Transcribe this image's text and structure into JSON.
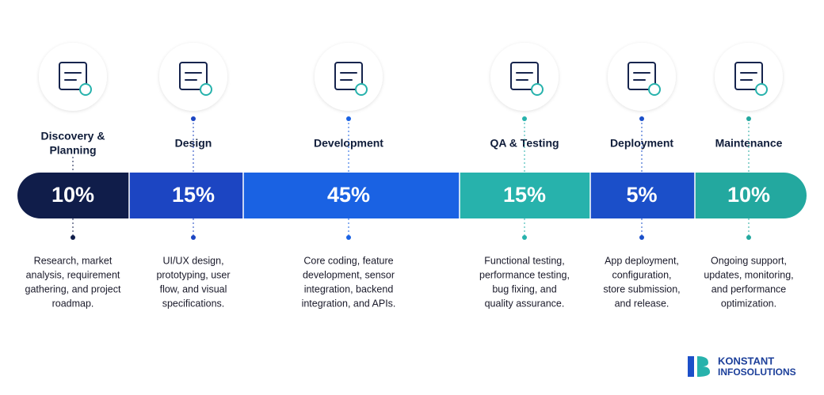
{
  "phases": [
    {
      "name": [
        "Discovery &",
        "Planning"
      ],
      "percent": "10%",
      "description": [
        "Research, market",
        "analysis, requirement",
        "gathering, and project",
        "roadmap."
      ],
      "color": "#101d4a",
      "dot": "#101d4a"
    },
    {
      "name": [
        "Design"
      ],
      "percent": "15%",
      "description": [
        "UI/UX design,",
        "prototyping, user",
        "flow, and visual",
        "specifications."
      ],
      "color": "#1c45c2",
      "dot": "#1c45c2"
    },
    {
      "name": [
        "Development"
      ],
      "percent": "45%",
      "description": [
        "Core coding, feature",
        "development, sensor",
        "integration, backend",
        "integration, and APIs."
      ],
      "color": "#1a62e3",
      "dot": "#1a62e3"
    },
    {
      "name": [
        "QA & Testing"
      ],
      "percent": "15%",
      "description": [
        "Functional testing,",
        "performance testing,",
        "bug fixing, and",
        "quality assurance."
      ],
      "color": "#27b2ac",
      "dot": "#27b2ac"
    },
    {
      "name": [
        "Deployment"
      ],
      "percent": "5%",
      "description": [
        "App deployment,",
        "configuration,",
        "store submission,",
        "and release."
      ],
      "color": "#1b4fc9",
      "dot": "#1b4fc9"
    },
    {
      "name": [
        "Maintenance"
      ],
      "percent": "10%",
      "description": [
        "Ongoing support,",
        "updates, monitoring,",
        "and performance",
        "optimization."
      ],
      "color": "#23a89f",
      "dot": "#23a89f"
    }
  ],
  "brand": [
    "KONSTANT",
    "INFOSOLUTIONS"
  ]
}
